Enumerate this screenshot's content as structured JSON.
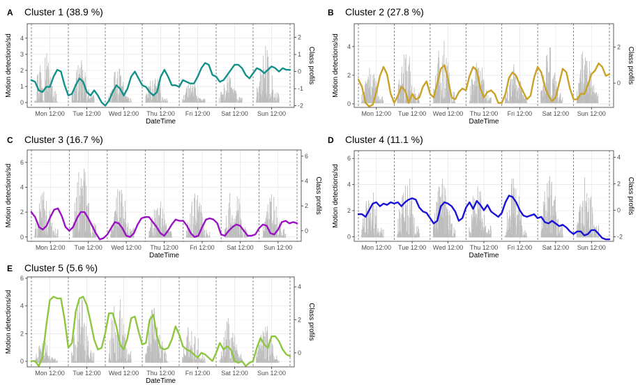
{
  "chart_data": [
    {
      "type": "line",
      "letter": "A",
      "title": "Cluster 1 (38.9 %)",
      "xlabel": "DateTime",
      "ylabel": "Motion detections/sd",
      "y2label": "Class profils",
      "color": "#14908a",
      "x_ticks": [
        "Mon 12:00",
        "Tue 12:00",
        "Wed 12:00",
        "Thu 12:00",
        "Fri 12:00",
        "Sat 12:00",
        "Sun 12:00"
      ],
      "ylim": [
        -0.3,
        4.9
      ],
      "yticks": [
        0,
        1,
        2,
        3,
        4
      ],
      "y2lim": [
        -2.1,
        2.8
      ],
      "y2ticks": [
        -2,
        -1,
        0,
        1,
        2
      ],
      "series": [
        {
          "axis": "secondary",
          "x": [
            0,
            0.1,
            0.2,
            0.3,
            0.4,
            0.5,
            0.6,
            0.7,
            0.8,
            0.9,
            1,
            1.1,
            1.2,
            1.3,
            1.4,
            1.5,
            1.6,
            1.7,
            1.8,
            1.9,
            2,
            2.1,
            2.2,
            2.3,
            2.4,
            2.5,
            2.6,
            2.7,
            2.8,
            2.9,
            3,
            3.1,
            3.2,
            3.3,
            3.4,
            3.5,
            3.6,
            3.7,
            3.8,
            3.9,
            4,
            4.1,
            4.2,
            4.3,
            4.4,
            4.5,
            4.6,
            4.7,
            4.8,
            4.9,
            5,
            5.1,
            5.2,
            5.3,
            5.4,
            5.5,
            5.6,
            5.7,
            5.8,
            5.9,
            6,
            6.1,
            6.2,
            6.3,
            6.4,
            6.5,
            6.6,
            6.7,
            6.8,
            6.9,
            7
          ],
          "y": [
            -0.5,
            -0.6,
            -1.1,
            -1.2,
            -0.9,
            -0.9,
            -0.3,
            0.1,
            0,
            -0.8,
            -1.4,
            -1.3,
            -0.8,
            -0.4,
            -0.6,
            -1.2,
            -1.4,
            -1.1,
            -1.4,
            -1.8,
            -2.0,
            -1.7,
            -1.2,
            -0.8,
            -1.0,
            -1.4,
            -1.0,
            -0.3,
            0.0,
            -0.4,
            -0.8,
            -0.9,
            -1.2,
            -1.4,
            -1.2,
            -0.3,
            0.1,
            -0.3,
            -0.8,
            -0.8,
            -0.9,
            -0.5,
            -0.6,
            -0.7,
            -0.7,
            -0.3,
            0.2,
            0.5,
            0.4,
            -0.2,
            -0.3,
            -0.6,
            -0.5,
            -0.2,
            0.1,
            0.4,
            0.4,
            0.2,
            -0.2,
            -0.4,
            -0.1,
            0.2,
            0.1,
            -0.1,
            0.1,
            0.3,
            0.2,
            0.0,
            0.2,
            0.1,
            0.1
          ]
        }
      ]
    },
    {
      "type": "line",
      "letter": "B",
      "title": "Cluster 2 (27.8 %)",
      "xlabel": "DateTime",
      "ylabel": "Motion detections/sd",
      "y2label": "Class profils",
      "color": "#c9a227",
      "x_ticks": [
        "Mon 12:00",
        "Tue 12:00",
        "Wed 12:00",
        "Thu 12:00",
        "Fri 12:00",
        "Sat 12:00",
        "Sun 12:00"
      ],
      "ylim": [
        -0.25,
        5.6
      ],
      "yticks": [
        0,
        2,
        4
      ],
      "y2lim": [
        -1.35,
        3.3
      ],
      "y2ticks": [
        0,
        2
      ],
      "series": [
        {
          "axis": "secondary",
          "x": [
            0,
            0.1,
            0.2,
            0.3,
            0.4,
            0.5,
            0.6,
            0.7,
            0.8,
            0.9,
            1,
            1.1,
            1.2,
            1.3,
            1.4,
            1.5,
            1.6,
            1.7,
            1.8,
            1.9,
            2,
            2.1,
            2.2,
            2.3,
            2.4,
            2.5,
            2.6,
            2.7,
            2.8,
            2.9,
            3,
            3.1,
            3.2,
            3.3,
            3.4,
            3.5,
            3.6,
            3.7,
            3.8,
            3.9,
            4,
            4.1,
            4.2,
            4.3,
            4.4,
            4.5,
            4.6,
            4.7,
            4.8,
            4.9,
            5,
            5.1,
            5.2,
            5.3,
            5.4,
            5.5,
            5.6,
            5.7,
            5.8,
            5.9,
            6,
            6.1,
            6.2,
            6.3,
            6.4,
            6.5,
            6.6,
            6.7,
            6.8,
            6.9,
            7
          ],
          "y": [
            0.2,
            -0.2,
            -1.1,
            -1.3,
            -1.2,
            -0.5,
            0.4,
            0.9,
            0.5,
            -0.6,
            -1.1,
            -0.7,
            -0.2,
            -0.4,
            -1.1,
            -0.6,
            -0.9,
            -0.8,
            -0.2,
            0.1,
            -0.6,
            -0.8,
            0.0,
            0.8,
            1.0,
            0.2,
            -0.8,
            -0.9,
            -0.5,
            -0.3,
            -0.4,
            0.4,
            0.9,
            0.7,
            -0.3,
            -0.8,
            -0.5,
            -0.4,
            -0.6,
            -1.1,
            -1.1,
            -0.6,
            0.3,
            0.6,
            0.4,
            -0.1,
            -0.5,
            -0.9,
            -0.7,
            0.3,
            0.9,
            0.6,
            -0.2,
            -0.7,
            -1.0,
            -0.8,
            0.0,
            0.8,
            0.6,
            -0.3,
            -0.9,
            -0.9,
            -0.6,
            -0.6,
            -0.1,
            0.5,
            0.7,
            1.1,
            0.9,
            0.4,
            0.5
          ]
        }
      ]
    },
    {
      "type": "line",
      "letter": "C",
      "title": "Cluster 3 (16.7 %)",
      "xlabel": "DateTime",
      "ylabel": "Motion detections/sd",
      "y2label": "Class profils",
      "color": "#9a12c2",
      "x_ticks": [
        "Mon 12:00",
        "Tue 12:00",
        "Wed 12:00",
        "Thu 12:00",
        "Fri 12:00",
        "Sat 12:00",
        "Sun 12:00"
      ],
      "ylim": [
        -0.35,
        7.0
      ],
      "yticks": [
        0,
        2,
        4,
        6
      ],
      "y2lim": [
        -0.85,
        6.5
      ],
      "y2ticks": [
        0,
        2,
        4,
        6
      ],
      "series": [
        {
          "axis": "secondary",
          "x": [
            0,
            0.1,
            0.2,
            0.3,
            0.4,
            0.5,
            0.6,
            0.7,
            0.8,
            0.9,
            1,
            1.1,
            1.2,
            1.3,
            1.4,
            1.5,
            1.6,
            1.7,
            1.8,
            1.9,
            2,
            2.1,
            2.2,
            2.3,
            2.4,
            2.5,
            2.6,
            2.7,
            2.8,
            2.9,
            3,
            3.1,
            3.2,
            3.3,
            3.4,
            3.5,
            3.6,
            3.7,
            3.8,
            3.9,
            4,
            4.1,
            4.2,
            4.3,
            4.4,
            4.5,
            4.6,
            4.7,
            4.8,
            4.9,
            5,
            5.1,
            5.2,
            5.3,
            5.4,
            5.5,
            5.6,
            5.7,
            5.8,
            5.9,
            6,
            6.1,
            6.2,
            6.3,
            6.4,
            6.5,
            6.6,
            6.7,
            6.8,
            6.9,
            7
          ],
          "y": [
            1.5,
            1.1,
            0.3,
            0.1,
            0.4,
            1.1,
            1.7,
            1.8,
            1.2,
            0.3,
            0.0,
            0.3,
            1.0,
            1.5,
            1.5,
            1.0,
            0.4,
            -0.2,
            -0.7,
            -0.6,
            -0.3,
            0.2,
            0.7,
            0.6,
            0.2,
            -0.4,
            -0.5,
            -0.2,
            0.5,
            1.0,
            1.1,
            1.1,
            0.7,
            0.3,
            -0.2,
            -0.4,
            0.0,
            0.5,
            0.9,
            0.8,
            0.8,
            0.4,
            -0.2,
            -0.5,
            -0.4,
            0.3,
            0.9,
            1.0,
            0.9,
            0.6,
            -0.3,
            -0.4,
            0.0,
            0.3,
            0.5,
            0.4,
            0.0,
            -0.4,
            -0.4,
            -0.3,
            0.2,
            0.5,
            0.4,
            -0.2,
            -0.3,
            0.1,
            0.7,
            0.8,
            0.6,
            0.7,
            0.6
          ]
        }
      ]
    },
    {
      "type": "line",
      "letter": "D",
      "title": "Cluster 4 (11.1 %)",
      "xlabel": "DateTime",
      "ylabel": "Motion detections/sd",
      "y2label": "Class profils",
      "color": "#1a12d6",
      "x_ticks": [
        "Mon 12:00",
        "Tue 12:00",
        "Wed 12:00",
        "Thu 12:00",
        "Fri 12:00",
        "Sat 12:00",
        "Sun 12:00"
      ],
      "ylim": [
        -0.35,
        6.6
      ],
      "yticks": [
        0,
        2,
        4,
        6
      ],
      "y2lim": [
        -2.35,
        4.5
      ],
      "y2ticks": [
        -2,
        0,
        2,
        4
      ],
      "series": [
        {
          "axis": "secondary",
          "x": [
            0,
            0.1,
            0.2,
            0.3,
            0.4,
            0.5,
            0.6,
            0.7,
            0.8,
            0.9,
            1,
            1.1,
            1.2,
            1.3,
            1.4,
            1.5,
            1.6,
            1.7,
            1.8,
            1.9,
            2,
            2.1,
            2.2,
            2.3,
            2.4,
            2.5,
            2.6,
            2.7,
            2.8,
            2.9,
            3,
            3.1,
            3.2,
            3.3,
            3.4,
            3.5,
            3.6,
            3.7,
            3.8,
            3.9,
            4,
            4.1,
            4.2,
            4.3,
            4.4,
            4.5,
            4.6,
            4.7,
            4.8,
            4.9,
            5,
            5.1,
            5.2,
            5.3,
            5.4,
            5.5,
            5.6,
            5.7,
            5.8,
            5.9,
            6,
            6.1,
            6.2,
            6.3,
            6.4,
            6.5,
            6.6,
            6.7,
            6.8,
            6.9,
            7
          ],
          "y": [
            -0.3,
            -0.3,
            -0.5,
            0.0,
            0.5,
            0.6,
            0.3,
            0.5,
            0.4,
            0.6,
            0.5,
            0.6,
            0.3,
            0.6,
            0.8,
            0.9,
            0.8,
            0.2,
            -0.1,
            -0.2,
            -0.6,
            -1.0,
            -0.8,
            0.3,
            0.6,
            0.5,
            0.3,
            -0.1,
            -0.8,
            -0.6,
            0.2,
            0.6,
            0.1,
            0.7,
            0.4,
            0.0,
            0.4,
            -0.1,
            -0.3,
            -0.5,
            -0.2,
            0.6,
            1.1,
            1.0,
            0.6,
            0.0,
            -0.4,
            -0.5,
            -0.4,
            -0.3,
            -0.6,
            -0.5,
            -0.9,
            -1.0,
            -0.8,
            -1.0,
            -1.2,
            -1.1,
            -1.3,
            -1.6,
            -1.8,
            -1.6,
            -1.6,
            -1.9,
            -1.8,
            -1.5,
            -1.5,
            -1.8,
            -2.1,
            -2.2,
            -2.2
          ]
        }
      ]
    },
    {
      "type": "line",
      "letter": "E",
      "title": "Cluster 5 (5.6 %)",
      "xlabel": "DateTime",
      "ylabel": "Motion detections/sd",
      "y2label": "Class profils",
      "color": "#8dc63f",
      "x_ticks": [
        "Mon 12:00",
        "Tue 12:00",
        "Wed 12:00",
        "Thu 12:00",
        "Fri 12:00",
        "Sat 12:00",
        "Sun 12:00"
      ],
      "ylim": [
        -0.4,
        6.1
      ],
      "yticks": [
        0,
        2,
        4,
        6
      ],
      "y2lim": [
        -0.85,
        4.6
      ],
      "y2ticks": [
        0,
        2,
        4
      ],
      "series": [
        {
          "axis": "secondary",
          "x": [
            0,
            0.1,
            0.2,
            0.3,
            0.4,
            0.5,
            0.6,
            0.7,
            0.8,
            0.9,
            1,
            1.1,
            1.2,
            1.3,
            1.4,
            1.5,
            1.6,
            1.7,
            1.8,
            1.9,
            2,
            2.1,
            2.2,
            2.3,
            2.4,
            2.5,
            2.6,
            2.7,
            2.8,
            2.9,
            3,
            3.1,
            3.2,
            3.3,
            3.4,
            3.5,
            3.6,
            3.7,
            3.8,
            3.9,
            4,
            4.1,
            4.2,
            4.3,
            4.4,
            4.5,
            4.6,
            4.7,
            4.8,
            4.9,
            5,
            5.1,
            5.2,
            5.3,
            5.4,
            5.5,
            5.6,
            5.7,
            5.8,
            5.9,
            6,
            6.1,
            6.2,
            6.3,
            6.4,
            6.5,
            6.6,
            6.7,
            6.8,
            6.9,
            7
          ],
          "y": [
            -0.5,
            -0.5,
            -0.8,
            -0.3,
            1.6,
            3.2,
            3.4,
            3.3,
            3.3,
            2.0,
            0.3,
            0.6,
            2.5,
            3.3,
            3.4,
            2.9,
            1.9,
            0.8,
            0.2,
            0.3,
            1.2,
            2.4,
            2.4,
            1.6,
            0.5,
            0.2,
            0.9,
            2.1,
            2.2,
            1.3,
            0.5,
            0.6,
            2.0,
            2.3,
            1.0,
            0.3,
            0.2,
            0.3,
            0.8,
            1.6,
            1.1,
            0.4,
            0.2,
            0.1,
            -0.1,
            -0.3,
            0.0,
            -0.1,
            -0.3,
            -0.5,
            0.0,
            0.6,
            0.2,
            0.4,
            0.2,
            -0.5,
            -0.6,
            -0.5,
            -0.8,
            -0.6,
            -0.5,
            0.3,
            0.9,
            0.5,
            0.3,
            1.0,
            1.0,
            0.7,
            0.2,
            -0.1,
            -0.2
          ]
        }
      ]
    }
  ]
}
